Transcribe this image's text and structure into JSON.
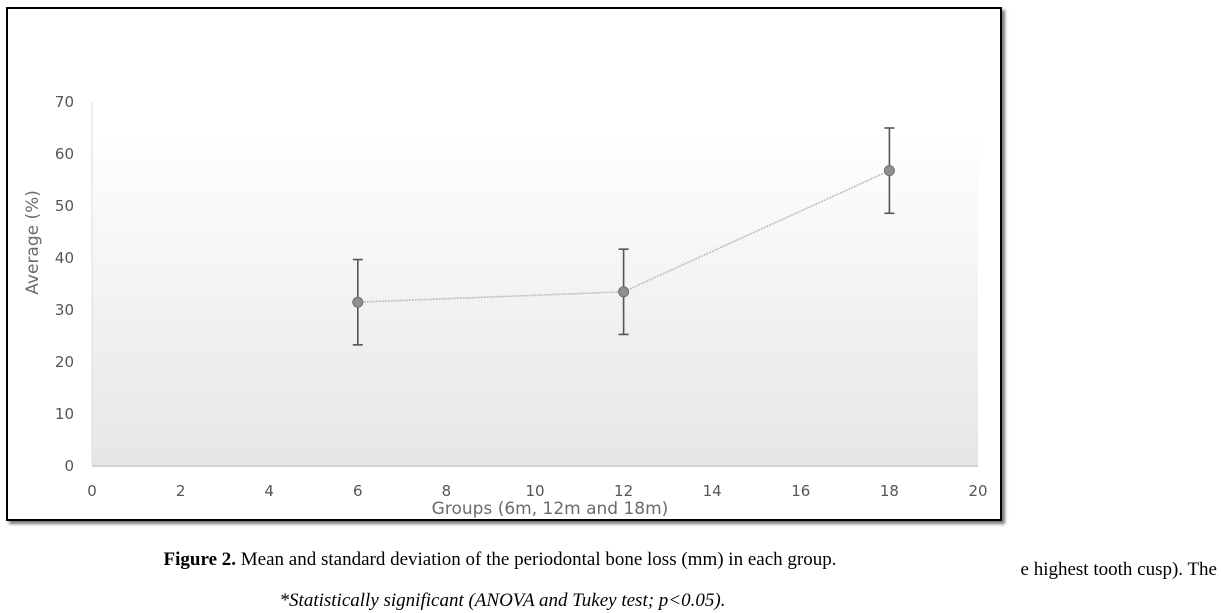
{
  "chart_data": {
    "type": "line",
    "xlabel": "Groups (6m, 12m and 18m)",
    "ylabel": "Average (%)",
    "xlim": [
      0,
      20
    ],
    "ylim": [
      0,
      70
    ],
    "x_ticks": [
      0,
      2,
      4,
      6,
      8,
      10,
      12,
      14,
      16,
      18,
      20
    ],
    "y_ticks": [
      0,
      10,
      20,
      30,
      40,
      50,
      60,
      70
    ],
    "grid": false,
    "series": [
      {
        "x": [
          6,
          12,
          18
        ],
        "y": [
          31.5,
          33.5,
          56.8
        ],
        "error": [
          8.2,
          8.2,
          8.2
        ]
      }
    ],
    "colors": {
      "line": "#bdbdbd",
      "marker": "#8f8f8f",
      "error_bar": "#555555"
    }
  },
  "caption": {
    "label": "Figure 2.",
    "text": " Mean and standard deviation of the periodontal bone loss (mm) in each group."
  },
  "note": "*Statistically significant (ANOVA and Tukey test; p<0.05).",
  "side_text": "e highest tooth cusp). The"
}
